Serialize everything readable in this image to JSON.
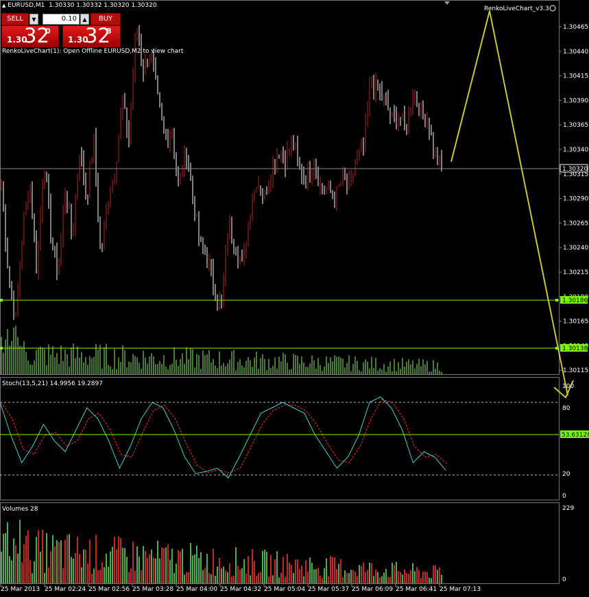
{
  "window": {
    "symbol_title": "EURUSD,M1",
    "ohlc": "1.30330 1.30332 1.30320 1.30320",
    "indicator_name": "RenkoLiveChart_v3.3",
    "indicator_message": "RenkoLiveChart(1): Open Offline EURUSD,M2 to view chart"
  },
  "trade_panel": {
    "sell_label": "SELL",
    "buy_label": "BUY",
    "lot_value": "0.10",
    "sell_price": {
      "prefix": "1.30",
      "big": "32",
      "sup": "0"
    },
    "buy_price": {
      "prefix": "1.30",
      "big": "32",
      "sup": "8"
    }
  },
  "main_axis": {
    "ticks": [
      "1.30465",
      "1.30440",
      "1.30415",
      "1.30390",
      "1.30365",
      "1.30340",
      "1.30315",
      "1.30290",
      "1.30265",
      "1.30240",
      "1.30215",
      "1.30190",
      "1.30165",
      "1.30140",
      "1.30115"
    ],
    "current_price": "1.30320",
    "hline_upper": "1.30186",
    "hline_lower": "1.30138"
  },
  "stoch": {
    "label": "Stoch(13,5,21) 14.9956 19.2897",
    "ticks": [
      "100",
      "80",
      "20",
      "0"
    ],
    "level_label": "53.63128"
  },
  "volumes": {
    "label": "Volumes 28",
    "ticks": [
      "229",
      "0"
    ]
  },
  "time_axis": [
    "25 Mar 2013",
    "25 Mar 02:24",
    "25 Mar 02:56",
    "25 Mar 03:28",
    "25 Mar 04:00",
    "25 Mar 04:32",
    "25 Mar 05:04",
    "25 Mar 05:37",
    "25 Mar 06:09",
    "25 Mar 06:41",
    "25 Mar 07:13"
  ],
  "colors": {
    "bull": "#b22222",
    "bear": "#ffffff",
    "grid": "#777777",
    "hline": "#7cfc00",
    "stoch_main": "#48d1cc",
    "stoch_signal": "#ff3030",
    "vol_up": "#4caf50",
    "vol_down": "#c62828",
    "projection": "#c8c83a"
  },
  "chart_data": {
    "type": "candlestick",
    "price_path": [
      1.30306,
      1.30212,
      1.30165,
      1.3026,
      1.3031,
      1.30215,
      1.3033,
      1.3025,
      1.30214,
      1.303,
      1.3025,
      1.3034,
      1.3029,
      1.3035,
      1.3023,
      1.3029,
      1.3032,
      1.3039,
      1.3035,
      1.3047,
      1.3042,
      1.3044,
      1.3039,
      1.3035,
      1.3036,
      1.303,
      1.3034,
      1.3029,
      1.3024,
      1.3023,
      1.302,
      1.30178,
      1.30265,
      1.3024,
      1.3022,
      1.3028,
      1.3031,
      1.3029,
      1.3032,
      1.3034,
      1.3033,
      1.3035,
      1.3032,
      1.3031,
      1.3033,
      1.303,
      1.303,
      1.3029,
      1.3031,
      1.303,
      1.3033,
      1.3034,
      1.3041,
      1.304,
      1.3039,
      1.3037,
      1.30375,
      1.3036,
      1.304,
      1.3038,
      1.3037,
      1.3034,
      1.3032
    ],
    "projection": [
      [
        1.3033
      ],
      [
        1.30477
      ],
      [
        1.30103
      ]
    ],
    "stoch_levels": [
      80,
      20
    ],
    "stoch_main": [
      85,
      55,
      30,
      45,
      65,
      50,
      40,
      60,
      80,
      70,
      50,
      25,
      45,
      70,
      85,
      80,
      60,
      35,
      20,
      22,
      25,
      16,
      35,
      55,
      75,
      80,
      85,
      80,
      75,
      55,
      40,
      25,
      35,
      55,
      85,
      90,
      80,
      60,
      30,
      40,
      35,
      23
    ],
    "volume_max": 229
  }
}
